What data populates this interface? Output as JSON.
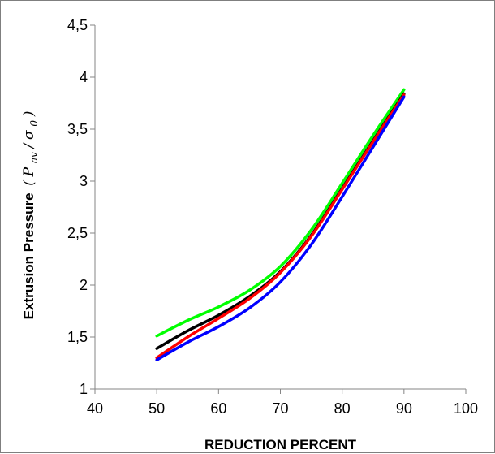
{
  "chart_data": {
    "type": "line",
    "title": "",
    "xlabel": "REDUCTION PERCENT",
    "ylabel": {
      "text": "Extrusion Pressure",
      "math_open": "(",
      "math_p": "P",
      "math_p_sub": "av",
      "math_slash": "/",
      "math_sigma": "σ",
      "math_sigma_sub": "0",
      "math_close": ")"
    },
    "xlim": [
      40,
      100
    ],
    "ylim": [
      1,
      4.5
    ],
    "x_ticks": [
      "40",
      "50",
      "60",
      "70",
      "80",
      "90",
      "100"
    ],
    "y_ticks": [
      "1",
      "1,5",
      "2",
      "2,5",
      "3",
      "3,5",
      "4",
      "4,5"
    ],
    "grid": false,
    "legend": "none",
    "series": [
      {
        "color": "#00ff00",
        "x": [
          50,
          55,
          60,
          65,
          70,
          75,
          80,
          85,
          90
        ],
        "y": [
          1.51,
          1.66,
          1.79,
          1.95,
          2.18,
          2.53,
          2.98,
          3.44,
          3.88
        ]
      },
      {
        "color": "#000000",
        "x": [
          50,
          55,
          60,
          65,
          70,
          75,
          80,
          85,
          90
        ],
        "y": [
          1.39,
          1.56,
          1.71,
          1.89,
          2.13,
          2.48,
          2.93,
          3.39,
          3.84
        ]
      },
      {
        "color": "#ff0000",
        "x": [
          50,
          55,
          60,
          65,
          70,
          75,
          80,
          85,
          90
        ],
        "y": [
          1.3,
          1.5,
          1.68,
          1.87,
          2.12,
          2.47,
          2.92,
          3.38,
          3.83
        ]
      },
      {
        "color": "#0000ff",
        "x": [
          50,
          55,
          60,
          65,
          70,
          75,
          80,
          85,
          90
        ],
        "y": [
          1.28,
          1.45,
          1.6,
          1.78,
          2.03,
          2.39,
          2.85,
          3.33,
          3.81
        ]
      }
    ]
  }
}
